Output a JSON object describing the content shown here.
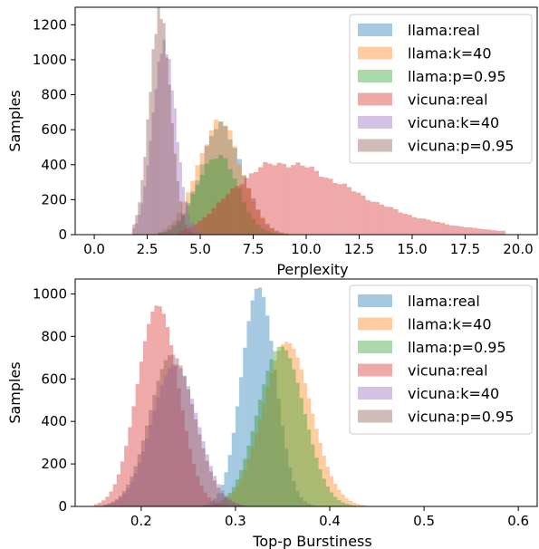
{
  "chart_data": [
    {
      "type": "histogram",
      "xlabel": "Perplexity",
      "ylabel": "Samples",
      "xlim": [
        -0.9,
        20.9
      ],
      "ylim": [
        0,
        1300
      ],
      "xticks": [
        0.0,
        2.5,
        5.0,
        7.5,
        10.0,
        12.5,
        15.0,
        17.5,
        20.0
      ],
      "xtick_labels": [
        "0.0",
        "2.5",
        "5.0",
        "7.5",
        "10.0",
        "12.5",
        "15.0",
        "17.5",
        "20.0"
      ],
      "yticks": [
        0,
        200,
        400,
        600,
        800,
        1000,
        1200
      ],
      "ytick_labels": [
        "0",
        "200",
        "400",
        "600",
        "800",
        "1000",
        "1200"
      ],
      "legend_position": "top-right",
      "grid": false,
      "alpha": 0.4,
      "series": [
        {
          "name": "llama:real",
          "color": "#1f77b4",
          "dist": "normal",
          "mean": 6.0,
          "sd": 1.0,
          "peak": 620,
          "xmin": 3.0,
          "xmax": 10.5,
          "bin": 0.22
        },
        {
          "name": "llama:k=40",
          "color": "#ff7f0e",
          "dist": "normal",
          "mean": 5.9,
          "sd": 1.05,
          "peak": 640,
          "xmin": 3.0,
          "xmax": 10.5,
          "bin": 0.22
        },
        {
          "name": "llama:p=0.95",
          "color": "#2ca02c",
          "dist": "normal",
          "mean": 5.8,
          "sd": 0.95,
          "peak": 460,
          "xmin": 3.0,
          "xmax": 9.5,
          "bin": 0.22
        },
        {
          "name": "vicuna:real",
          "color": "#d62728",
          "dist": "lognormal",
          "mode": 8.9,
          "sd": 2.6,
          "peak": 410,
          "xmin": 4.0,
          "xmax": 19.2,
          "bin": 0.22
        },
        {
          "name": "vicuna:k=40",
          "color": "#9467bd",
          "dist": "normal",
          "mean": 3.3,
          "sd": 0.55,
          "peak": 1120,
          "xmin": 1.8,
          "xmax": 5.6,
          "bin": 0.13
        },
        {
          "name": "vicuna:p=0.95",
          "color": "#8c564b",
          "dist": "normal",
          "mean": 3.1,
          "sd": 0.5,
          "peak": 1240,
          "xmin": 1.8,
          "xmax": 5.2,
          "bin": 0.13
        }
      ]
    },
    {
      "type": "histogram",
      "xlabel": "Top-p Burstiness",
      "ylabel": "Samples",
      "xlim": [
        0.13,
        0.62
      ],
      "ylim": [
        0,
        1070
      ],
      "xticks": [
        0.2,
        0.3,
        0.4,
        0.5,
        0.6
      ],
      "xtick_labels": [
        "0.2",
        "0.3",
        "0.4",
        "0.5",
        "0.6"
      ],
      "yticks": [
        0,
        200,
        400,
        600,
        800,
        1000
      ],
      "ytick_labels": [
        "0",
        "200",
        "400",
        "600",
        "800",
        "1000"
      ],
      "legend_position": "top-right",
      "grid": false,
      "alpha": 0.4,
      "series": [
        {
          "name": "llama:real",
          "color": "#1f77b4",
          "dist": "normal",
          "mean": 0.325,
          "sd": 0.018,
          "peak": 1010,
          "xmin": 0.26,
          "xmax": 0.41,
          "bin": 0.004
        },
        {
          "name": "llama:k=40",
          "color": "#ff7f0e",
          "dist": "normal",
          "mean": 0.355,
          "sd": 0.026,
          "peak": 770,
          "xmin": 0.26,
          "xmax": 0.44,
          "bin": 0.004
        },
        {
          "name": "llama:p=0.95",
          "color": "#2ca02c",
          "dist": "normal",
          "mean": 0.348,
          "sd": 0.024,
          "peak": 800,
          "xmin": 0.26,
          "xmax": 0.43,
          "bin": 0.004
        },
        {
          "name": "vicuna:real",
          "color": "#d62728",
          "dist": "normal",
          "mean": 0.218,
          "sd": 0.022,
          "peak": 920,
          "xmin": 0.15,
          "xmax": 0.3,
          "bin": 0.004
        },
        {
          "name": "vicuna:k=40",
          "color": "#9467bd",
          "dist": "normal",
          "mean": 0.235,
          "sd": 0.024,
          "peak": 700,
          "xmin": 0.16,
          "xmax": 0.31,
          "bin": 0.004
        },
        {
          "name": "vicuna:p=0.95",
          "color": "#8c564b",
          "dist": "normal",
          "mean": 0.233,
          "sd": 0.024,
          "peak": 710,
          "xmin": 0.16,
          "xmax": 0.31,
          "bin": 0.004
        }
      ]
    }
  ]
}
